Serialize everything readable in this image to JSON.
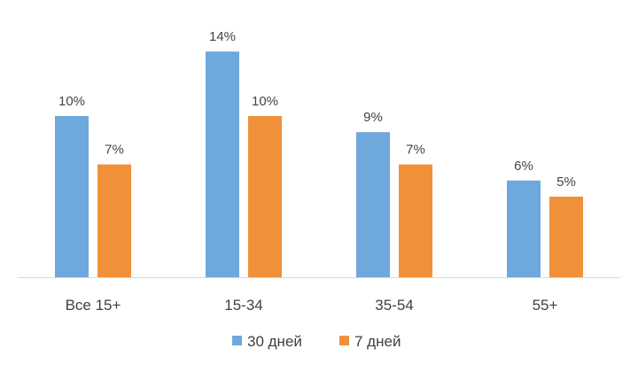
{
  "chart_data": {
    "type": "bar",
    "categories": [
      "Все 15+",
      "15-34",
      "35-54",
      "55+"
    ],
    "series": [
      {
        "name": "30 дней",
        "color": "#6FA8DC",
        "values": [
          10,
          14,
          9,
          6
        ],
        "labels": [
          "10%",
          "14%",
          "9%",
          "6%"
        ]
      },
      {
        "name": "7 дней",
        "color": "#F0913A",
        "values": [
          7,
          10,
          7,
          5
        ],
        "labels": [
          "7%",
          "10%",
          "7%",
          "5%"
        ]
      }
    ],
    "ylim": [
      0,
      15
    ],
    "grid": false,
    "legend": "bottom",
    "title": "",
    "xlabel": "",
    "ylabel": ""
  }
}
